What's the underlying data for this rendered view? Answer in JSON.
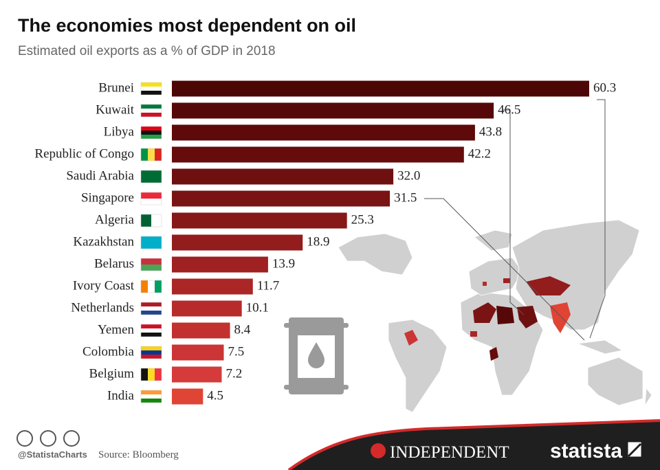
{
  "chart_data": {
    "type": "bar",
    "orientation": "horizontal",
    "title": "The economies most dependent on oil",
    "subtitle": "Estimated oil exports as a % of GDP in 2018",
    "categories": [
      "Brunei",
      "Kuwait",
      "Libya",
      "Republic of Congo",
      "Saudi Arabia",
      "Singapore",
      "Algeria",
      "Kazakhstan",
      "Belarus",
      "Ivory Coast",
      "Netherlands",
      "Yemen",
      "Colombia",
      "Belgium",
      "India"
    ],
    "values": [
      60.3,
      46.5,
      43.8,
      42.2,
      32.0,
      31.5,
      25.3,
      18.9,
      13.9,
      11.7,
      10.1,
      8.4,
      7.5,
      7.2,
      4.5
    ],
    "value_labels": [
      "60.3",
      "46.5",
      "43.8",
      "42.2",
      "32.0",
      "31.5",
      "25.3",
      "18.9",
      "13.9",
      "11.7",
      "10.1",
      "8.4",
      "7.5",
      "7.2",
      "4.5"
    ],
    "colors": [
      "#4d0606",
      "#560808",
      "#5e0a0a",
      "#660c0c",
      "#6f1010",
      "#7a1414",
      "#861818",
      "#931c1c",
      "#9f2121",
      "#ab2626",
      "#b72b2b",
      "#c23030",
      "#cc3535",
      "#d63b3b",
      "#e04434"
    ],
    "source": "Source: Bloomberg",
    "credit": "@StatistaCharts",
    "publisher": "INDEPENDENT",
    "brand": "statista"
  }
}
